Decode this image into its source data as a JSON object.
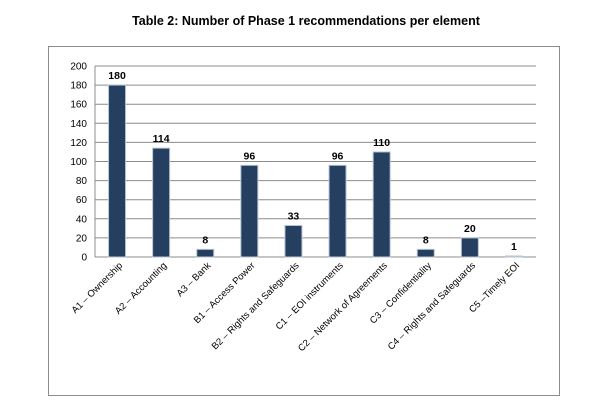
{
  "chart_data": {
    "type": "bar",
    "title": "Table 2: Number of Phase 1 recommendations per element",
    "categories": [
      "A1 – Ownership",
      "A2 – Accounting",
      "A3 – Bank",
      "B1 – Access Power",
      "B2 – Rights and Safeguards",
      "C1 – EOI instruments",
      "C2 – Network of Agreements",
      "C3 – Confidentiality",
      "C4 – Rights and Safeguards",
      "C5 –Timely EOI"
    ],
    "values": [
      180,
      114,
      8,
      96,
      33,
      96,
      110,
      8,
      20,
      1
    ],
    "ylim": [
      0,
      200
    ],
    "yticks": [
      0,
      20,
      40,
      60,
      80,
      100,
      120,
      140,
      160,
      180,
      200
    ],
    "grid": true,
    "legend": "none",
    "colors": {
      "bar": "#243f60",
      "bar_edge": "#b8c4d4",
      "grid": "#8c8c8c"
    }
  }
}
